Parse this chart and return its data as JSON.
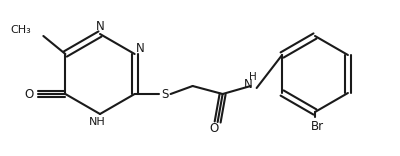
{
  "background_color": "#ffffff",
  "line_color": "#1a1a1a",
  "line_width": 1.5,
  "figsize": [
    4.0,
    1.56
  ],
  "dpi": 100,
  "xlim": [
    0,
    400
  ],
  "ylim": [
    0,
    156
  ]
}
